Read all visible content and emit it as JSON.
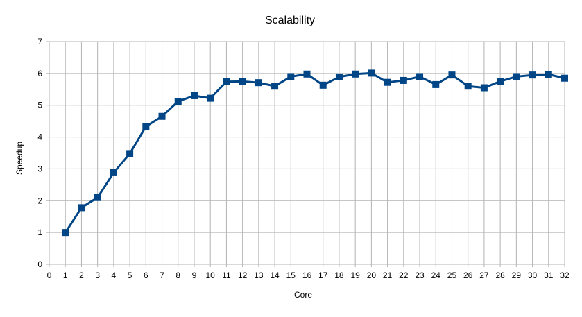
{
  "chart_data": {
    "type": "line",
    "title": "Scalability",
    "xlabel": "Core",
    "ylabel": "Speedup",
    "xlim": [
      0,
      32
    ],
    "ylim": [
      0,
      7
    ],
    "x_ticks": [
      0,
      1,
      2,
      3,
      4,
      5,
      6,
      7,
      8,
      9,
      10,
      11,
      12,
      13,
      14,
      15,
      16,
      17,
      18,
      19,
      20,
      21,
      22,
      23,
      24,
      25,
      26,
      27,
      28,
      29,
      30,
      31,
      32
    ],
    "y_ticks": [
      0,
      1,
      2,
      3,
      4,
      5,
      6,
      7
    ],
    "grid": true,
    "legend": "none",
    "series": [
      {
        "color": "#004586",
        "marker": "square",
        "x": [
          1,
          2,
          3,
          4,
          5,
          6,
          7,
          8,
          9,
          10,
          11,
          12,
          13,
          14,
          15,
          16,
          17,
          18,
          19,
          20,
          21,
          22,
          23,
          24,
          25,
          26,
          27,
          28,
          29,
          30,
          31,
          32
        ],
        "values": [
          1.0,
          1.78,
          2.1,
          2.88,
          3.48,
          4.33,
          4.65,
          5.12,
          5.3,
          5.22,
          5.74,
          5.75,
          5.71,
          5.6,
          5.9,
          5.98,
          5.63,
          5.89,
          5.98,
          6.01,
          5.72,
          5.78,
          5.9,
          5.65,
          5.95,
          5.6,
          5.55,
          5.75,
          5.9,
          5.95,
          5.97,
          5.85
        ]
      }
    ]
  }
}
